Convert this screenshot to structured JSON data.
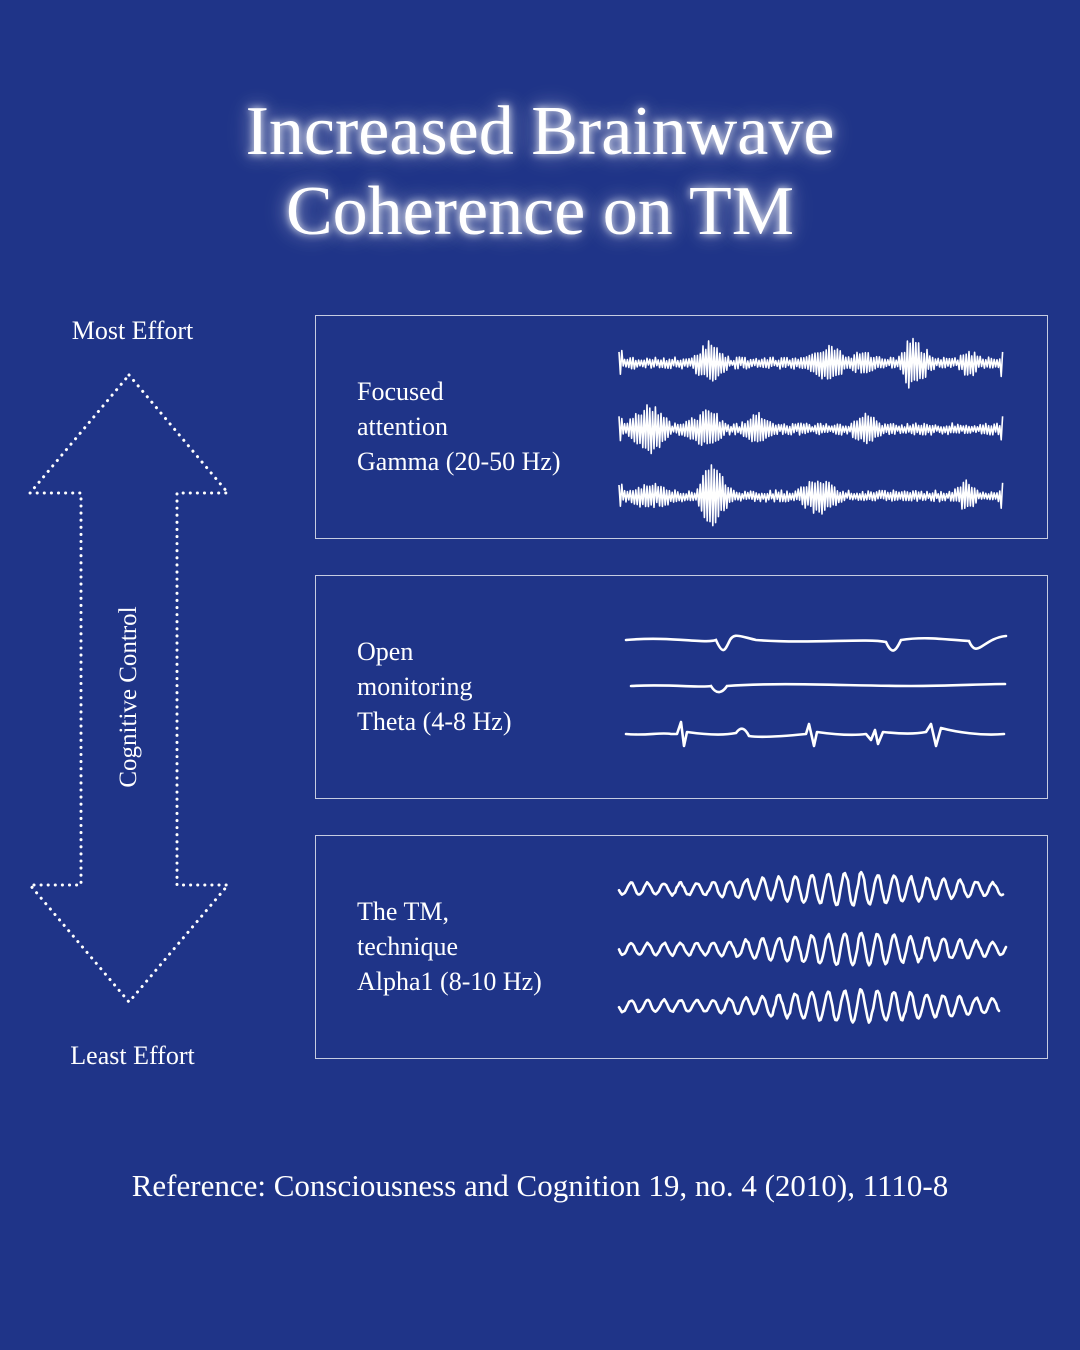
{
  "title": {
    "line1": "Increased Brainwave",
    "line2": "Coherence on TM"
  },
  "scale": {
    "top_label": "Most Effort",
    "bottom_label": "Least Effort",
    "axis_label": "Cognitive Control"
  },
  "panels": [
    {
      "lines": [
        "Focused",
        "attention",
        "Gamma (20-50 Hz)"
      ],
      "wave_type": "gamma"
    },
    {
      "lines": [
        "Open",
        "monitoring",
        "Theta (4-8 Hz)"
      ],
      "wave_type": "theta"
    },
    {
      "lines": [
        "The TM,",
        "technique",
        "Alpha1 (8-10 Hz)"
      ],
      "wave_type": "alpha"
    }
  ],
  "reference": "Reference: Consciousness and Cognition 19, no. 4 (2010), 1110-8",
  "colors": {
    "background": "#1f3488",
    "foreground": "#ffffff"
  }
}
